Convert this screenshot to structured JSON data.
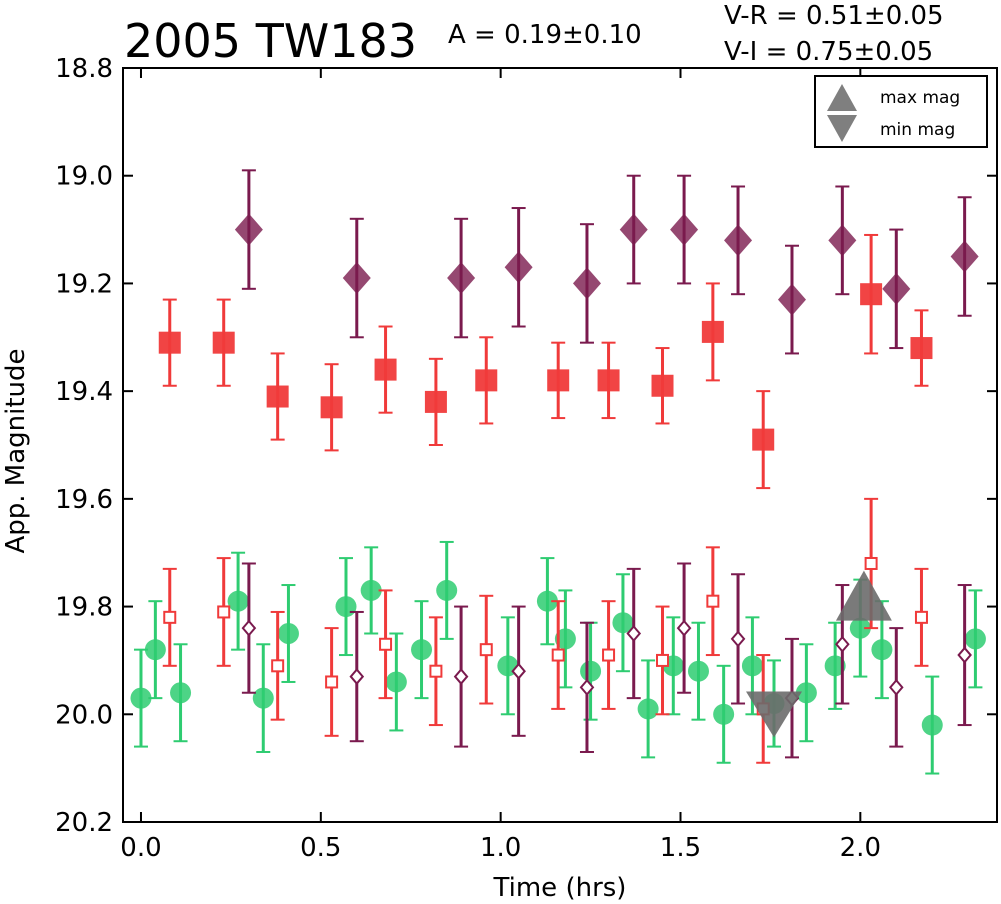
{
  "chart_data": {
    "type": "scatter",
    "title": "2005 TW183",
    "annotations": {
      "amplitude": "A  = 0.19±0.10",
      "v_r": "V-R = 0.51±0.05",
      "v_i": "V-I  = 0.75±0.05"
    },
    "xlabel": "Time (hrs)",
    "ylabel": "App. Magnitude",
    "xlim": [
      -0.05,
      2.38
    ],
    "ylim": [
      20.2,
      18.8
    ],
    "y_inverted": true,
    "xticks": [
      "0.0",
      "0.5",
      "1.0",
      "1.5",
      "2.0"
    ],
    "xtick_values": [
      0.0,
      0.5,
      1.0,
      1.5,
      2.0
    ],
    "yticks": [
      "18.8",
      "19.0",
      "19.2",
      "19.4",
      "19.6",
      "19.8",
      "20.0",
      "20.2"
    ],
    "ytick_values": [
      18.8,
      19.0,
      19.2,
      19.4,
      19.6,
      19.8,
      20.0,
      20.2
    ],
    "grid": false,
    "legend": {
      "placement": "top-right",
      "entries": [
        {
          "label": "max mag",
          "marker": "triangle-up",
          "color": "#7f7f7f"
        },
        {
          "label": "min mag",
          "marker": "triangle-down",
          "color": "#7f7f7f"
        }
      ]
    },
    "series": [
      {
        "marker": "diamond-filled",
        "color": "#7a1a4e",
        "points": [
          [
            0.3,
            19.1,
            0.11
          ],
          [
            0.6,
            19.19,
            0.11
          ],
          [
            0.89,
            19.19,
            0.11
          ],
          [
            1.05,
            19.17,
            0.11
          ],
          [
            1.24,
            19.2,
            0.11
          ],
          [
            1.37,
            19.1,
            0.1
          ],
          [
            1.51,
            19.1,
            0.1
          ],
          [
            1.66,
            19.12,
            0.1
          ],
          [
            1.81,
            19.23,
            0.1
          ],
          [
            1.95,
            19.12,
            0.1
          ],
          [
            2.1,
            19.21,
            0.11
          ],
          [
            2.29,
            19.15,
            0.11
          ]
        ]
      },
      {
        "marker": "square-filled",
        "color": "#f03a3a",
        "points": [
          [
            0.08,
            19.31,
            0.08
          ],
          [
            0.23,
            19.31,
            0.08
          ],
          [
            0.38,
            19.41,
            0.08
          ],
          [
            0.53,
            19.43,
            0.08
          ],
          [
            0.68,
            19.36,
            0.08
          ],
          [
            0.82,
            19.42,
            0.08
          ],
          [
            0.96,
            19.38,
            0.08
          ],
          [
            1.16,
            19.38,
            0.07
          ],
          [
            1.3,
            19.38,
            0.07
          ],
          [
            1.45,
            19.39,
            0.07
          ],
          [
            1.59,
            19.29,
            0.09
          ],
          [
            1.73,
            19.49,
            0.09
          ],
          [
            2.03,
            19.22,
            0.11
          ],
          [
            2.17,
            19.32,
            0.07
          ]
        ]
      },
      {
        "marker": "circle-filled",
        "color": "#2ecc71",
        "points": [
          [
            0.0,
            19.97,
            0.09
          ],
          [
            0.04,
            19.88,
            0.09
          ],
          [
            0.11,
            19.96,
            0.09
          ],
          [
            0.27,
            19.79,
            0.09
          ],
          [
            0.34,
            19.97,
            0.1
          ],
          [
            0.41,
            19.85,
            0.09
          ],
          [
            0.57,
            19.8,
            0.09
          ],
          [
            0.64,
            19.77,
            0.08
          ],
          [
            0.71,
            19.94,
            0.09
          ],
          [
            0.78,
            19.88,
            0.09
          ],
          [
            0.85,
            19.77,
            0.09
          ],
          [
            1.02,
            19.91,
            0.09
          ],
          [
            1.13,
            19.79,
            0.08
          ],
          [
            1.18,
            19.86,
            0.09
          ],
          [
            1.25,
            19.92,
            0.09
          ],
          [
            1.34,
            19.83,
            0.09
          ],
          [
            1.41,
            19.99,
            0.09
          ],
          [
            1.48,
            19.91,
            0.09
          ],
          [
            1.55,
            19.92,
            0.09
          ],
          [
            1.62,
            20.0,
            0.09
          ],
          [
            1.7,
            19.91,
            0.09
          ],
          [
            1.76,
            19.98,
            0.08
          ],
          [
            1.85,
            19.96,
            0.09
          ],
          [
            1.93,
            19.91,
            0.08
          ],
          [
            2.0,
            19.84,
            0.09
          ],
          [
            2.06,
            19.88,
            0.09
          ],
          [
            2.2,
            20.02,
            0.09
          ],
          [
            2.32,
            19.86,
            0.09
          ]
        ]
      },
      {
        "marker": "square-open",
        "color": "#f03a3a",
        "points": [
          [
            0.08,
            19.82,
            0.09
          ],
          [
            0.23,
            19.81,
            0.1
          ],
          [
            0.38,
            19.91,
            0.1
          ],
          [
            0.53,
            19.94,
            0.1
          ],
          [
            0.68,
            19.87,
            0.1
          ],
          [
            0.82,
            19.92,
            0.1
          ],
          [
            0.96,
            19.88,
            0.1
          ],
          [
            1.16,
            19.89,
            0.1
          ],
          [
            1.3,
            19.89,
            0.1
          ],
          [
            1.45,
            19.9,
            0.1
          ],
          [
            1.59,
            19.79,
            0.1
          ],
          [
            1.73,
            19.99,
            0.1
          ],
          [
            2.03,
            19.72,
            0.12
          ],
          [
            2.17,
            19.82,
            0.09
          ]
        ]
      },
      {
        "marker": "diamond-open",
        "color": "#7a1a4e",
        "points": [
          [
            0.3,
            19.84,
            0.12
          ],
          [
            0.6,
            19.93,
            0.12
          ],
          [
            0.89,
            19.93,
            0.13
          ],
          [
            1.05,
            19.92,
            0.12
          ],
          [
            1.24,
            19.95,
            0.12
          ],
          [
            1.37,
            19.85,
            0.12
          ],
          [
            1.51,
            19.84,
            0.12
          ],
          [
            1.66,
            19.86,
            0.12
          ],
          [
            1.81,
            19.97,
            0.11
          ],
          [
            1.95,
            19.87,
            0.11
          ],
          [
            2.1,
            19.95,
            0.11
          ],
          [
            2.29,
            19.89,
            0.13
          ]
        ]
      }
    ],
    "extrema": [
      {
        "label": "min mag",
        "marker": "triangle-down",
        "x": 1.76,
        "y": 19.98,
        "color": "#6b6b6b"
      },
      {
        "label": "max mag",
        "marker": "triangle-up",
        "x": 2.01,
        "y": 19.8,
        "color": "#6b6b6b"
      }
    ]
  }
}
